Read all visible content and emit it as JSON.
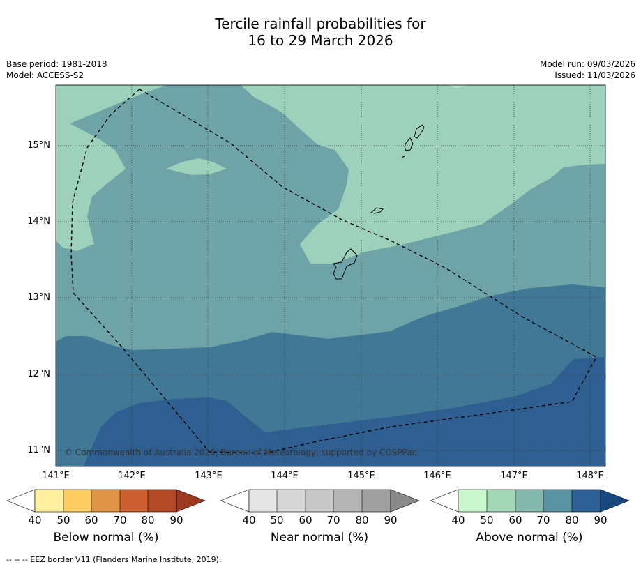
{
  "title_line1": "Tercile rainfall probabilities for",
  "title_line2": "16 to 29 March 2026",
  "base_period": "Base period: 1981-2018",
  "model": "Model: ACCESS-S2",
  "model_run": "Model run: 09/03/2026",
  "issued": "Issued: 11/03/2026",
  "copyright": "© Commonwealth of Australia 2026, Bureau of Meteorology, supported by COSPPac",
  "lat_labels": [
    "15°N",
    "14°N",
    "13°N",
    "12°N",
    "11°N"
  ],
  "lon_labels": [
    "141°E",
    "142°E",
    "143°E",
    "144°E",
    "145°E",
    "146°E",
    "147°E",
    "148°E"
  ],
  "colorbars": [
    {
      "label": "Below normal (%)",
      "ticks": [
        "40",
        "50",
        "60",
        "70",
        "80",
        "90"
      ],
      "colors": [
        "#fff0a0",
        "#fdcb62",
        "#e09448",
        "#cd6030",
        "#b24a27",
        "#9b3a20"
      ]
    },
    {
      "label": "Near normal (%)",
      "ticks": [
        "40",
        "50",
        "60",
        "70",
        "80",
        "90"
      ],
      "colors": [
        "#e5e5e5",
        "#d6d6d6",
        "#c8c8c8",
        "#b4b4b4",
        "#a0a0a0",
        "#8a8a8a"
      ]
    },
    {
      "label": "Above normal (%)",
      "ticks": [
        "40",
        "50",
        "60",
        "70",
        "80",
        "90"
      ],
      "colors": [
        "#caf7cc",
        "#a4d7b8",
        "#85b8ad",
        "#5a93a3",
        "#2d6095",
        "#19487e"
      ]
    }
  ],
  "map_colors": {
    "above_50_60": "#9dd1bb",
    "above_60_70": "#6ea3a7",
    "above_70_80": "#407896",
    "above_80_90": "#2f5e90"
  },
  "legend_note": "--  --  -- EEZ border V11 (Flanders Marine Institute, 2019)."
}
